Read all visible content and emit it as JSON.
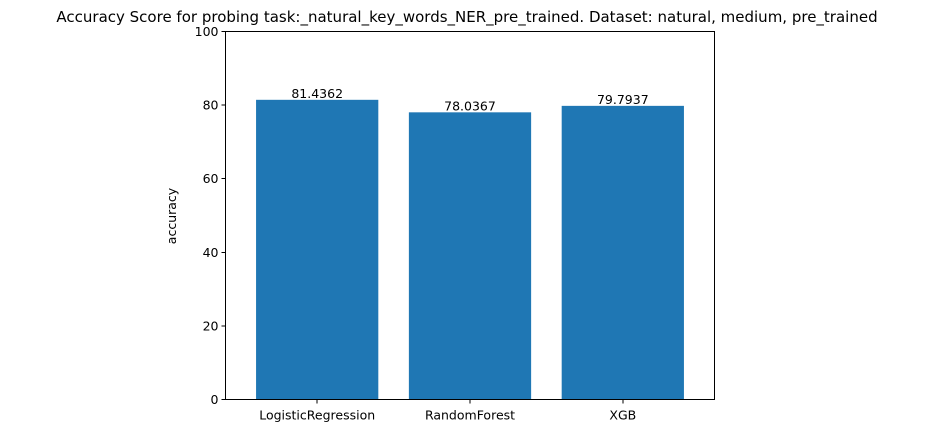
{
  "chart_data": {
    "type": "bar",
    "title": "Accuracy Score for probing task:_natural_key_words_NER_pre_trained. Dataset: natural, medium, pre_trained",
    "xlabel": "",
    "ylabel": "accuracy",
    "categories": [
      "LogisticRegression",
      "RandomForest",
      "XGB"
    ],
    "values": [
      81.4362,
      78.0367,
      79.7937
    ],
    "value_labels": [
      "81.4362",
      "78.0367",
      "79.7937"
    ],
    "ylim": [
      0,
      100
    ],
    "yticks": [
      0,
      20,
      40,
      60,
      80,
      100
    ],
    "ytick_labels": [
      "0",
      "20",
      "40",
      "60",
      "80",
      "100"
    ],
    "bar_color": "#1f77b4",
    "grid": false,
    "legend": "none"
  }
}
